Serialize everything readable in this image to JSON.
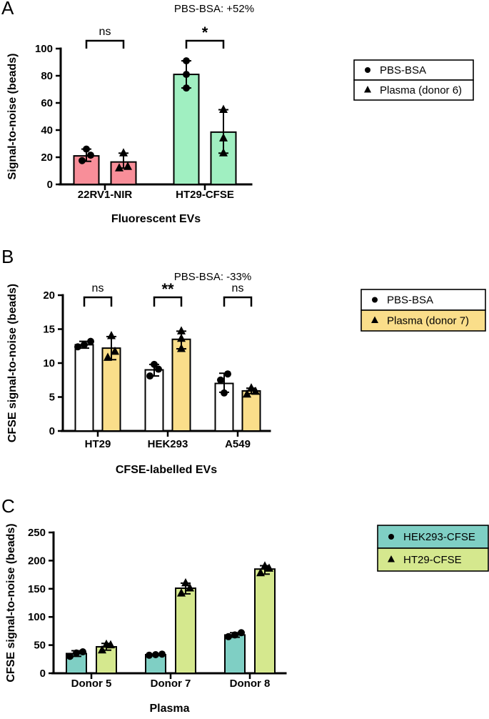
{
  "chart_data": [
    {
      "panel": "A",
      "type": "bar",
      "title": "PBS-BSA: +52%",
      "xlabel": "Fluorescent EVs",
      "ylabel": "Signal-to-noise (beads)",
      "ylim": [
        0,
        100
      ],
      "yticks": [
        0,
        20,
        40,
        60,
        80,
        100
      ],
      "categories": [
        "22RV1-NIR",
        "HT29-CFSE"
      ],
      "color_mode": "category",
      "category_colors": [
        "#F88E99",
        "#A0EFC1"
      ],
      "series": [
        {
          "name": "PBS-BSA",
          "marker": "circle",
          "means": [
            21,
            81
          ],
          "errors_low": [
            17,
            71
          ],
          "errors_high": [
            26,
            91
          ],
          "points": [
            [
              17.5,
              21.5,
              26
            ],
            [
              71,
              81,
              91
            ]
          ]
        },
        {
          "name": "Plasma (donor 6)",
          "marker": "triangle",
          "means": [
            16.5,
            38.5
          ],
          "errors_low": [
            12,
            23
          ],
          "errors_high": [
            23,
            55
          ],
          "points": [
            [
              12,
              13,
              23
            ],
            [
              23,
              34,
              55
            ]
          ]
        }
      ],
      "legend": [
        {
          "label": "PBS-BSA",
          "marker": "circle",
          "fill": "#FFFFFF"
        },
        {
          "label": "Plasma (donor 6)",
          "marker": "triangle",
          "fill": "#FFFFFF"
        }
      ],
      "significance": [
        {
          "category": 0,
          "label": "ns"
        },
        {
          "category": 1,
          "label": "*"
        }
      ]
    },
    {
      "panel": "B",
      "type": "bar",
      "title": "PBS-BSA: -33%",
      "xlabel": "CFSE-labelled EVs",
      "ylabel": "CFSE signal-to-noise (beads)",
      "ylim": [
        0,
        20
      ],
      "yticks": [
        0,
        5,
        10,
        15,
        20
      ],
      "categories": [
        "HT29",
        "HEK293",
        "A549"
      ],
      "color_mode": "series",
      "series": [
        {
          "name": "PBS-BSA",
          "marker": "circle",
          "fill": "#FFFFFF",
          "means": [
            12.7,
            9.0,
            7.0
          ],
          "errors_low": [
            12.2,
            8.1,
            5.7
          ],
          "errors_high": [
            13.2,
            9.8,
            8.5
          ],
          "points": [
            [
              12.4,
              12.7,
              13.2
            ],
            [
              8.1,
              9.1,
              9.8
            ],
            [
              5.6,
              7.5,
              8.4
            ]
          ]
        },
        {
          "name": "Plasma (donor 7)",
          "marker": "triangle",
          "fill": "#FADE8A",
          "means": [
            12.2,
            13.5,
            5.9
          ],
          "errors_low": [
            10.5,
            12.1,
            5.5
          ],
          "errors_high": [
            13.9,
            14.7,
            6.3
          ],
          "points": [
            [
              10.8,
              11.7,
              14.0
            ],
            [
              12.1,
              13.6,
              14.7
            ],
            [
              5.4,
              5.8,
              6.3
            ]
          ]
        }
      ],
      "legend": [
        {
          "label": "PBS-BSA",
          "marker": "circle",
          "fill": "#FFFFFF"
        },
        {
          "label": "Plasma (donor 7)",
          "marker": "triangle",
          "fill": "#FADE8A"
        }
      ],
      "significance": [
        {
          "category": 0,
          "label": "ns"
        },
        {
          "category": 1,
          "label": "**"
        },
        {
          "category": 2,
          "label": "ns"
        }
      ]
    },
    {
      "panel": "C",
      "type": "bar",
      "title": "",
      "xlabel": "Plasma",
      "ylabel": "CFSE signal-to-noise (beads)",
      "ylim": [
        0,
        250
      ],
      "yticks": [
        0,
        50,
        100,
        150,
        200,
        250
      ],
      "categories": [
        "Donor 5",
        "Donor 7",
        "Donor 8"
      ],
      "color_mode": "series",
      "series": [
        {
          "name": "HEK293-CFSE",
          "marker": "circle",
          "fill": "#7FCFC4",
          "means": [
            35,
            33,
            68
          ],
          "errors_low": [
            30,
            32,
            64
          ],
          "errors_high": [
            40,
            34,
            72
          ],
          "points": [
            [
              30,
              36,
              38
            ],
            [
              32,
              33,
              34
            ],
            [
              65,
              68,
              72
            ]
          ]
        },
        {
          "name": "HT29-CFSE",
          "marker": "triangle",
          "fill": "#D5E88E",
          "means": [
            47,
            151,
            185
          ],
          "errors_low": [
            41,
            141,
            176
          ],
          "errors_high": [
            53,
            160,
            191
          ],
          "points": [
            [
              41,
              50,
              51
            ],
            [
              142,
              151,
              160
            ],
            [
              178,
              186,
              190
            ]
          ]
        }
      ],
      "legend": [
        {
          "label": "HEK293-CFSE",
          "marker": "circle",
          "fill": "#7FCFC4"
        },
        {
          "label": "HT29-CFSE",
          "marker": "triangle",
          "fill": "#D5E88E"
        }
      ],
      "significance": []
    }
  ]
}
